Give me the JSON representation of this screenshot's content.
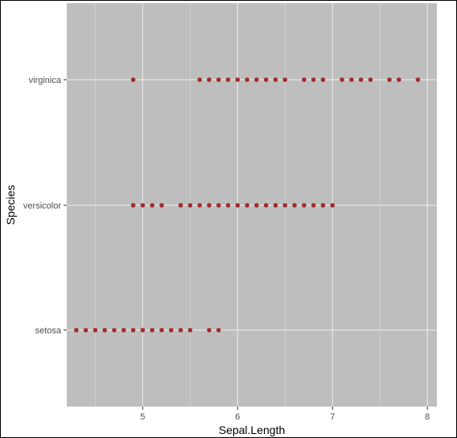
{
  "chart_data": {
    "type": "scatter",
    "xlabel": "Sepal.Length",
    "ylabel": "Species",
    "xlim": [
      4.2,
      8.1
    ],
    "x_ticks": [
      5,
      6,
      7,
      8
    ],
    "x_minor_ticks": [
      4.5,
      5.5,
      6.5,
      7.5
    ],
    "categories": [
      "setosa",
      "versicolor",
      "virginica"
    ],
    "grid": true,
    "panel_color": "#bebebe",
    "grid_color": "#e5e5e5",
    "point_color": "#a52a2a",
    "points": {
      "setosa": [
        4.3,
        4.4,
        4.5,
        4.6,
        4.7,
        4.8,
        4.9,
        5.0,
        5.1,
        5.2,
        5.3,
        5.4,
        5.5,
        5.7,
        5.8
      ],
      "versicolor": [
        4.9,
        5.0,
        5.1,
        5.2,
        5.4,
        5.5,
        5.6,
        5.7,
        5.8,
        5.9,
        6.0,
        6.1,
        6.2,
        6.3,
        6.4,
        6.5,
        6.6,
        6.7,
        6.8,
        6.9,
        7.0
      ],
      "virginica": [
        4.9,
        5.6,
        5.7,
        5.8,
        5.9,
        6.0,
        6.1,
        6.2,
        6.3,
        6.4,
        6.5,
        6.7,
        6.8,
        6.9,
        7.1,
        7.2,
        7.3,
        7.4,
        7.6,
        7.7,
        7.9
      ]
    }
  }
}
